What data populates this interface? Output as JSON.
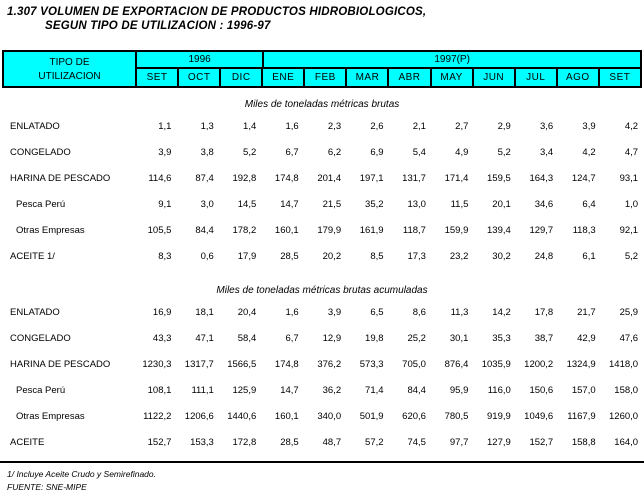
{
  "title": {
    "line1": "1.307 VOLUMEN DE EXPORTACION DE PRODUCTOS HIDROBIOLOGICOS,",
    "line2": "SEGUN TIPO DE UTILIZACION : 1996-97"
  },
  "table": {
    "header_bg": "#00FFFF",
    "border_color": "#000000",
    "corner_header": {
      "line1": "TIPO DE",
      "line2": "UTILIZACION"
    },
    "year_groups": [
      {
        "label": "1996",
        "span": 3
      },
      {
        "label": "1997(P)",
        "span": 9
      }
    ],
    "months": [
      "SET",
      "OCT",
      "DIC",
      "ENE",
      "FEB",
      "MAR",
      "ABR",
      "MAY",
      "JUN",
      "JUL",
      "AGO",
      "SET"
    ],
    "sections": [
      {
        "heading": "Miles de toneladas métricas brutas",
        "rows": [
          {
            "label": "ENLATADO",
            "indent": false,
            "values": [
              "1,1",
              "1,3",
              "1,4",
              "1,6",
              "2,3",
              "2,6",
              "2,1",
              "2,7",
              "2,9",
              "3,6",
              "3,9",
              "4,2"
            ]
          },
          {
            "label": "CONGELADO",
            "indent": false,
            "values": [
              "3,9",
              "3,8",
              "5,2",
              "6,7",
              "6,2",
              "6,9",
              "5,4",
              "4,9",
              "5,2",
              "3,4",
              "4,2",
              "4,7"
            ]
          },
          {
            "label": "HARINA DE PESCADO",
            "indent": false,
            "values": [
              "114,6",
              "87,4",
              "192,8",
              "174,8",
              "201,4",
              "197,1",
              "131,7",
              "171,4",
              "159,5",
              "164,3",
              "124,7",
              "93,1"
            ]
          },
          {
            "label": "Pesca Perú",
            "indent": true,
            "values": [
              "9,1",
              "3,0",
              "14,5",
              "14,7",
              "21,5",
              "35,2",
              "13,0",
              "11,5",
              "20,1",
              "34,6",
              "6,4",
              "1,0"
            ]
          },
          {
            "label": "Otras Empresas",
            "indent": true,
            "values": [
              "105,5",
              "84,4",
              "178,2",
              "160,1",
              "179,9",
              "161,9",
              "118,7",
              "159,9",
              "139,4",
              "129,7",
              "118,3",
              "92,1"
            ]
          },
          {
            "label": "ACEITE 1/",
            "indent": false,
            "values": [
              "8,3",
              "0,6",
              "17,9",
              "28,5",
              "20,2",
              "8,5",
              "17,3",
              "23,2",
              "30,2",
              "24,8",
              "6,1",
              "5,2"
            ]
          }
        ]
      },
      {
        "heading": "Miles de toneladas métricas brutas acumuladas",
        "rows": [
          {
            "label": "ENLATADO",
            "indent": false,
            "values": [
              "16,9",
              "18,1",
              "20,4",
              "1,6",
              "3,9",
              "6,5",
              "8,6",
              "11,3",
              "14,2",
              "17,8",
              "21,7",
              "25,9"
            ]
          },
          {
            "label": "CONGELADO",
            "indent": false,
            "values": [
              "43,3",
              "47,1",
              "58,4",
              "6,7",
              "12,9",
              "19,8",
              "25,2",
              "30,1",
              "35,3",
              "38,7",
              "42,9",
              "47,6"
            ]
          },
          {
            "label": "HARINA DE PESCADO",
            "indent": false,
            "values": [
              "1230,3",
              "1317,7",
              "1566,5",
              "174,8",
              "376,2",
              "573,3",
              "705,0",
              "876,4",
              "1035,9",
              "1200,2",
              "1324,9",
              "1418,0"
            ]
          },
          {
            "label": "Pesca Perú",
            "indent": true,
            "values": [
              "108,1",
              "111,1",
              "125,9",
              "14,7",
              "36,2",
              "71,4",
              "84,4",
              "95,9",
              "116,0",
              "150,6",
              "157,0",
              "158,0"
            ]
          },
          {
            "label": "Otras Empresas",
            "indent": true,
            "values": [
              "1122,2",
              "1206,6",
              "1440,6",
              "160,1",
              "340,0",
              "501,9",
              "620,6",
              "780,5",
              "919,9",
              "1049,6",
              "1167,9",
              "1260,0"
            ]
          },
          {
            "label": "ACEITE",
            "indent": false,
            "values": [
              "152,7",
              "153,3",
              "172,8",
              "28,5",
              "48,7",
              "57,2",
              "74,5",
              "97,7",
              "127,9",
              "152,7",
              "158,8",
              "164,0"
            ]
          }
        ]
      }
    ]
  },
  "footnotes": {
    "note1": "1/ Incluye Aceite Crudo y Semirefinado.",
    "source": "FUENTE:  SNE-MIPE"
  }
}
